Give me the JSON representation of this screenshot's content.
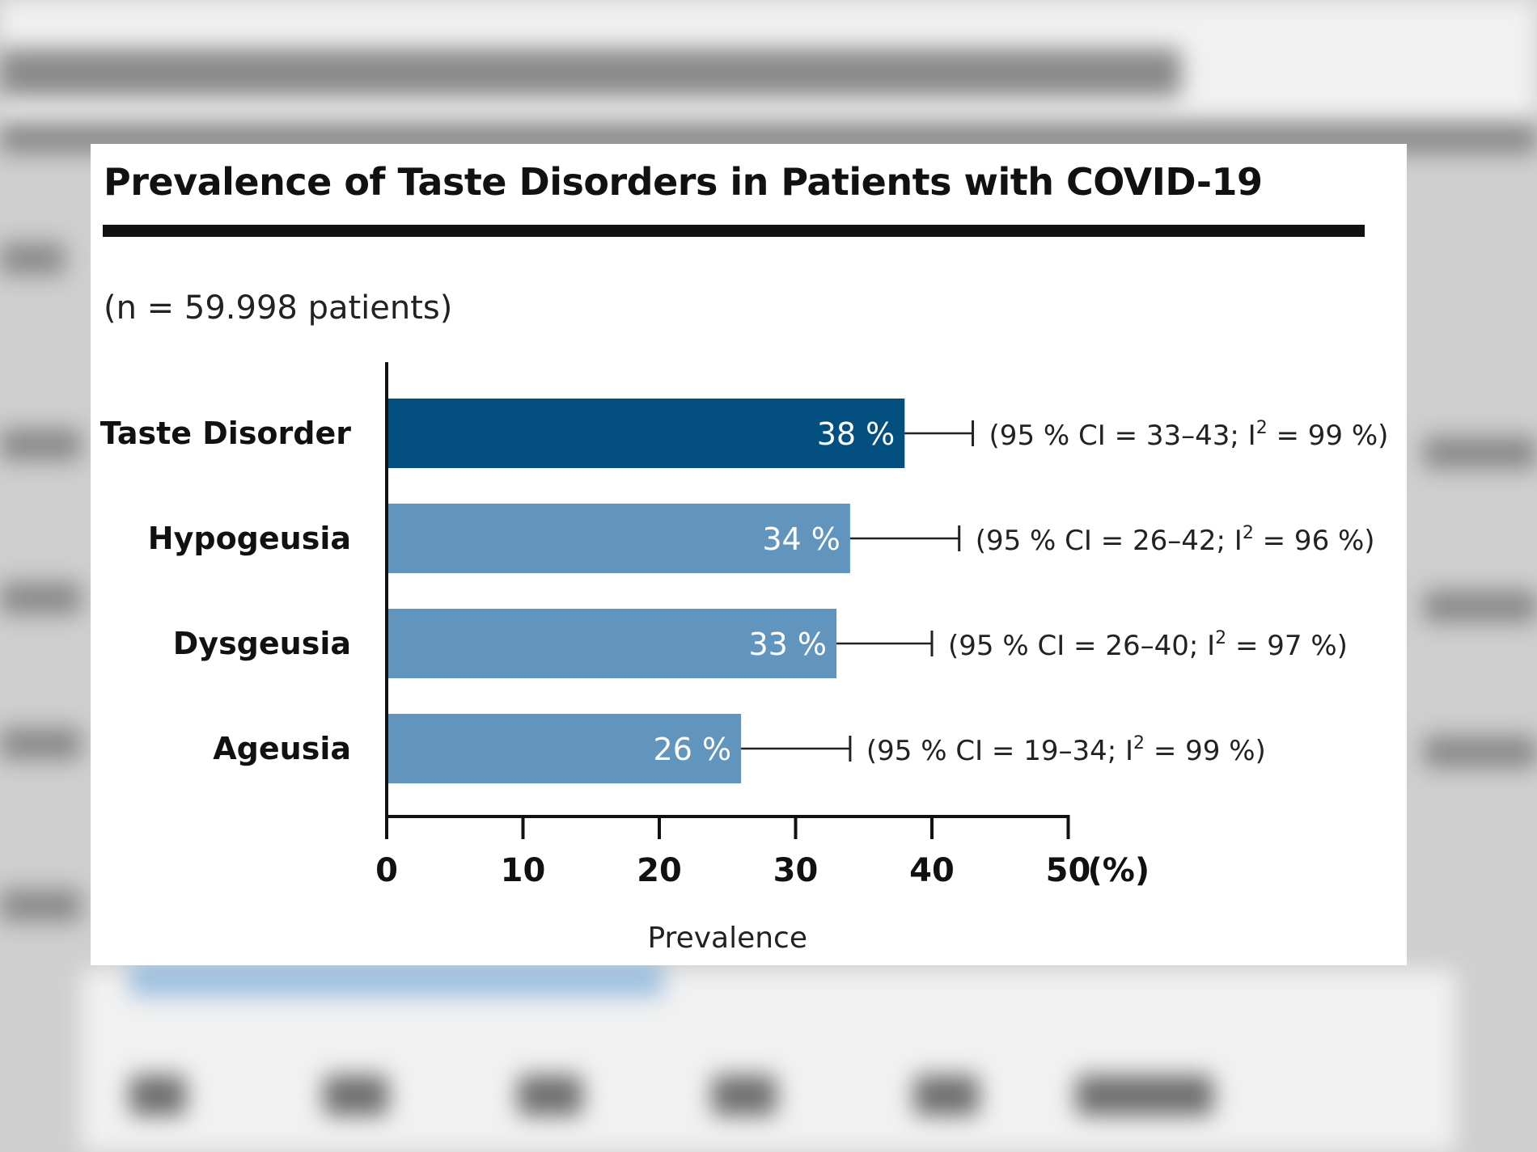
{
  "colors": {
    "highlight": "#034f80",
    "bar": "#6195be",
    "axis": "#111111",
    "text": "#111111"
  },
  "chart_data": {
    "type": "bar",
    "orientation": "horizontal",
    "title": "Prevalence of Taste Disorders in Patients with COVID-19",
    "subtitle": "(n = 59.998 patients)",
    "xlabel": "Prevalence",
    "x_unit": "(%)",
    "xlim": [
      0,
      50
    ],
    "xticks": [
      0,
      10,
      20,
      30,
      40,
      50
    ],
    "categories": [
      "Taste Disorder",
      "Hypogeusia",
      "Dysgeusia",
      "Ageusia"
    ],
    "values": [
      38,
      34,
      33,
      26
    ],
    "value_labels": [
      "38 %",
      "34 %",
      "33 %",
      "26 %"
    ],
    "ci_upper": [
      43,
      42,
      40,
      34
    ],
    "annotations": [
      {
        "pre": "(95 % CI = 33–43; I",
        "sup": "2",
        "post": " = 99 %)"
      },
      {
        "pre": "(95 % CI = 26–42; I",
        "sup": "2",
        "post": " = 96 %)"
      },
      {
        "pre": "(95 % CI = 26–40; I",
        "sup": "2",
        "post": " = 97 %)"
      },
      {
        "pre": "(95 % CI = 19–34; I",
        "sup": "2",
        "post": " = 99 %)"
      }
    ],
    "highlight_index": 0,
    "grid": false
  }
}
